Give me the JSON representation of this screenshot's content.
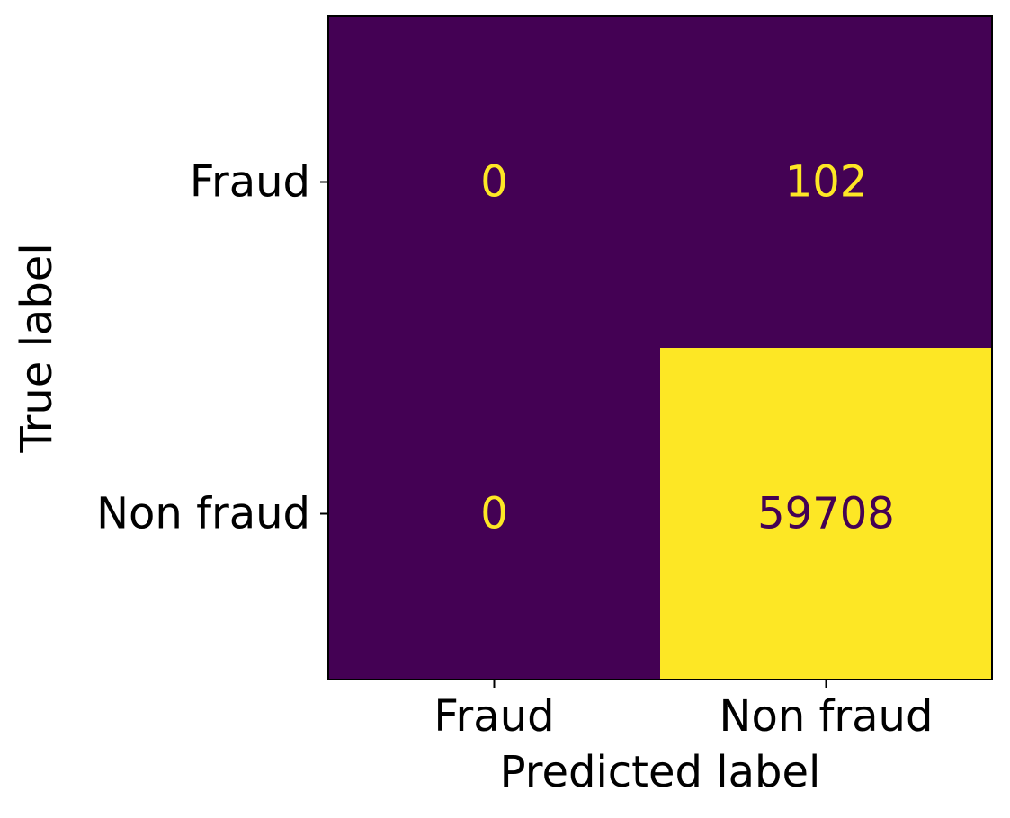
{
  "chart_data": {
    "type": "heatmap",
    "title": "",
    "xlabel": "Predicted label",
    "ylabel": "True label",
    "x_categories": [
      "Fraud",
      "Non fraud"
    ],
    "y_categories": [
      "Fraud",
      "Non fraud"
    ],
    "matrix": [
      [
        0,
        102
      ],
      [
        0,
        59708
      ]
    ],
    "cell_labels": [
      [
        "0",
        "102"
      ],
      [
        "0",
        "59708"
      ]
    ],
    "colormap": "viridis",
    "colors": {
      "low": "#440154",
      "high": "#fde725"
    },
    "colorbar": false,
    "grid": false
  }
}
